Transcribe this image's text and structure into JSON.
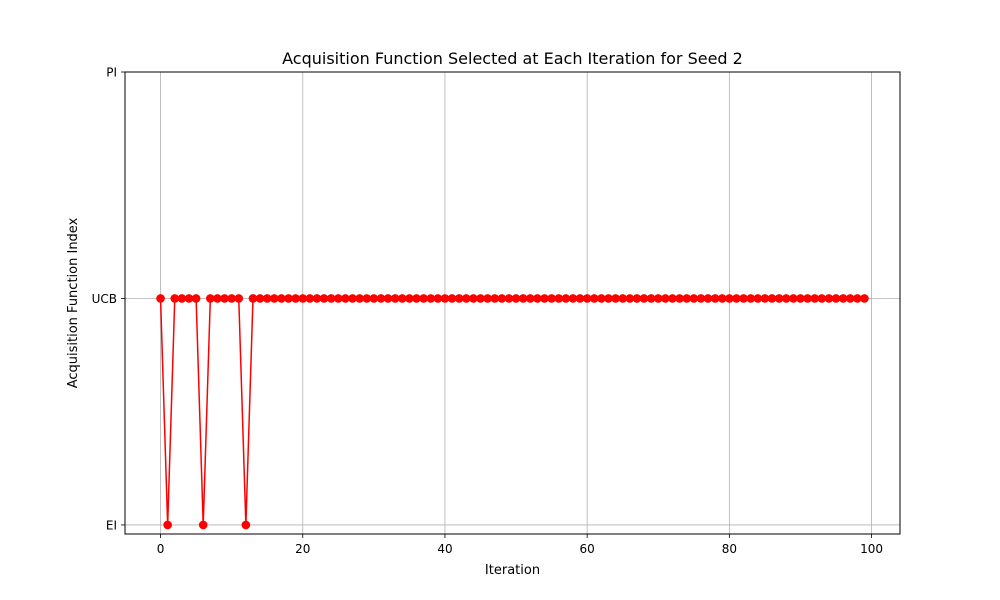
{
  "chart_data": {
    "type": "line",
    "title": "Acquisition Function Selected at Each Iteration for Seed 2",
    "xlabel": "Iteration",
    "ylabel": "Acquisition Function Index",
    "xlim": [
      -5,
      104
    ],
    "ylim": [
      -0.04,
      2.0
    ],
    "x_ticks": [
      0,
      20,
      40,
      60,
      80,
      100
    ],
    "y_ticks": [
      {
        "value": 0,
        "label": "EI"
      },
      {
        "value": 1,
        "label": "UCB"
      },
      {
        "value": 2,
        "label": "PI"
      }
    ],
    "grid": true,
    "marker": "circle",
    "series": [
      {
        "color": "#ff0000",
        "x": [
          0,
          1,
          2,
          3,
          4,
          5,
          6,
          7,
          8,
          9,
          10,
          11,
          12,
          13,
          14,
          15,
          16,
          17,
          18,
          19,
          20,
          21,
          22,
          23,
          24,
          25,
          26,
          27,
          28,
          29,
          30,
          31,
          32,
          33,
          34,
          35,
          36,
          37,
          38,
          39,
          40,
          41,
          42,
          43,
          44,
          45,
          46,
          47,
          48,
          49,
          50,
          51,
          52,
          53,
          54,
          55,
          56,
          57,
          58,
          59,
          60,
          61,
          62,
          63,
          64,
          65,
          66,
          67,
          68,
          69,
          70,
          71,
          72,
          73,
          74,
          75,
          76,
          77,
          78,
          79,
          80,
          81,
          82,
          83,
          84,
          85,
          86,
          87,
          88,
          89,
          90,
          91,
          92,
          93,
          94,
          95,
          96,
          97,
          98,
          99
        ],
        "values": [
          1,
          0,
          1,
          1,
          1,
          1,
          0,
          1,
          1,
          1,
          1,
          1,
          0,
          1,
          1,
          1,
          1,
          1,
          1,
          1,
          1,
          1,
          1,
          1,
          1,
          1,
          1,
          1,
          1,
          1,
          1,
          1,
          1,
          1,
          1,
          1,
          1,
          1,
          1,
          1,
          1,
          1,
          1,
          1,
          1,
          1,
          1,
          1,
          1,
          1,
          1,
          1,
          1,
          1,
          1,
          1,
          1,
          1,
          1,
          1,
          1,
          1,
          1,
          1,
          1,
          1,
          1,
          1,
          1,
          1,
          1,
          1,
          1,
          1,
          1,
          1,
          1,
          1,
          1,
          1,
          1,
          1,
          1,
          1,
          1,
          1,
          1,
          1,
          1,
          1,
          1,
          1,
          1,
          1,
          1,
          1,
          1,
          1,
          1,
          1
        ]
      }
    ]
  }
}
